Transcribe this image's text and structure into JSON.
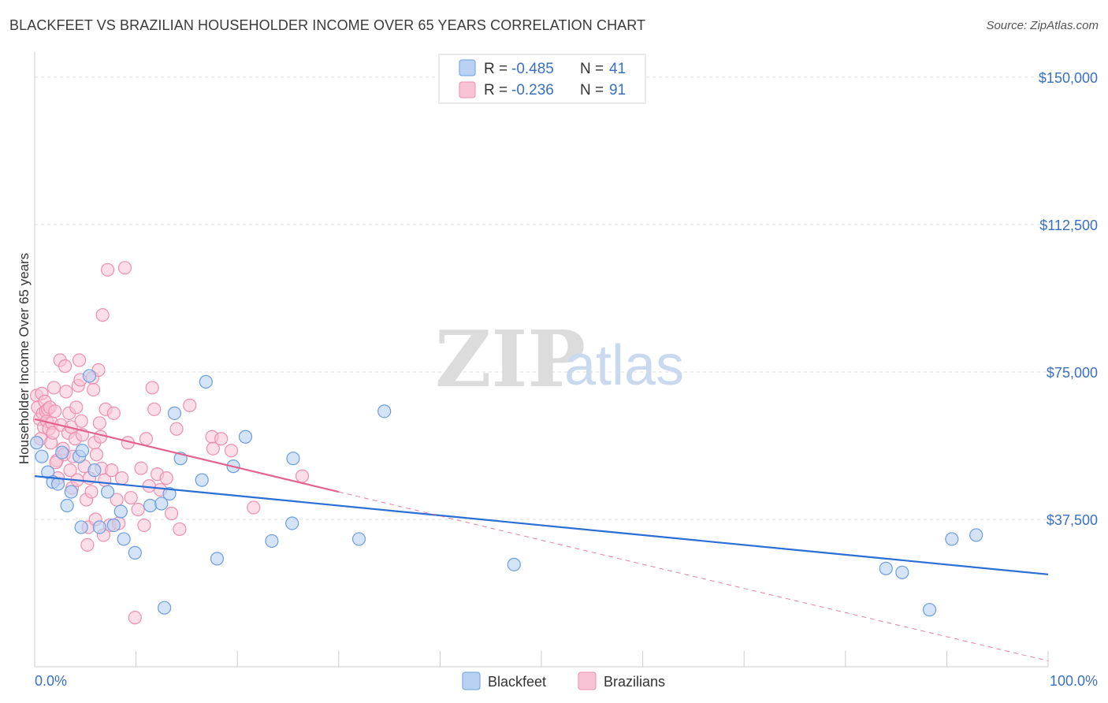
{
  "header": {
    "title": "BLACKFEET VS BRAZILIAN HOUSEHOLDER INCOME OVER 65 YEARS CORRELATION CHART",
    "source": "Source: ZipAtlas.com"
  },
  "watermark": {
    "zip": "ZIP",
    "atlas": "atlas"
  },
  "colors": {
    "blackfeet": "#6b9de0",
    "blackfeet_fill": "#b9d1f2",
    "blackfeet_line": "#2a6fd6",
    "brazilians": "#ef8fae",
    "brazilians_fill": "#f8c3d5",
    "brazilians_line": "#e4628f",
    "axis_label": "#3a70c4",
    "grid": "#dddddd"
  },
  "legend": {
    "rows": [
      {
        "r_label": "R = ",
        "r_value": "-0.485",
        "n_label": "N = ",
        "n_value": "41"
      },
      {
        "r_label": "R = ",
        "r_value": "-0.236",
        "n_label": "N = ",
        "n_value": "91"
      }
    ]
  },
  "bottom_legend": [
    "Blackfeet",
    "Brazilians"
  ],
  "chart_data": {
    "type": "scatter",
    "title": "BLACKFEET VS BRAZILIAN HOUSEHOLDER INCOME OVER 65 YEARS CORRELATION CHART",
    "xlabel": "",
    "ylabel": "Householder Income Over 65 years",
    "xlim": [
      0,
      100
    ],
    "ylim": [
      0,
      154000
    ],
    "x_tick_labels": [
      "0.0%",
      "100.0%"
    ],
    "y_ticks": [
      37500,
      75000,
      112500,
      150000
    ],
    "y_tick_labels": [
      "$37,500",
      "$75,000",
      "$112,500",
      "$150,000"
    ],
    "series": [
      {
        "name": "Blackfeet",
        "r": -0.485,
        "n": 41,
        "trend": {
          "x": [
            0,
            100
          ],
          "y": [
            48500,
            23500
          ]
        },
        "points": [
          [
            0.2,
            57000
          ],
          [
            0.7,
            53500
          ],
          [
            1.3,
            49500
          ],
          [
            1.8,
            47000
          ],
          [
            2.3,
            46500
          ],
          [
            2.7,
            54500
          ],
          [
            3.2,
            41000
          ],
          [
            3.6,
            44500
          ],
          [
            4.4,
            53500
          ],
          [
            4.6,
            35500
          ],
          [
            4.7,
            55000
          ],
          [
            5.4,
            74000
          ],
          [
            5.9,
            50000
          ],
          [
            6.4,
            35500
          ],
          [
            7.2,
            44500
          ],
          [
            7.8,
            36000
          ],
          [
            8.5,
            39500
          ],
          [
            8.8,
            32500
          ],
          [
            9.9,
            29000
          ],
          [
            11.4,
            41000
          ],
          [
            12.5,
            41500
          ],
          [
            12.8,
            15000
          ],
          [
            13.3,
            44000
          ],
          [
            13.8,
            64500
          ],
          [
            14.4,
            53000
          ],
          [
            16.5,
            47500
          ],
          [
            16.9,
            72500
          ],
          [
            18.0,
            27500
          ],
          [
            19.6,
            51000
          ],
          [
            20.8,
            58500
          ],
          [
            23.4,
            32000
          ],
          [
            25.5,
            53000
          ],
          [
            25.4,
            36500
          ],
          [
            32.0,
            32500
          ],
          [
            34.5,
            65000
          ],
          [
            47.3,
            26000
          ],
          [
            84.0,
            25000
          ],
          [
            85.6,
            24000
          ],
          [
            88.3,
            14500
          ],
          [
            90.5,
            32500
          ],
          [
            92.9,
            33500
          ]
        ]
      },
      {
        "name": "Brazilians",
        "r": -0.236,
        "n": 91,
        "trend": {
          "x": [
            0,
            30
          ],
          "y": [
            63000,
            44500
          ]
        },
        "trend_extension": {
          "x": [
            30,
            100
          ],
          "y": [
            44500,
            1500
          ]
        },
        "points": [
          [
            0.2,
            69000
          ],
          [
            0.3,
            66000
          ],
          [
            0.5,
            63000
          ],
          [
            0.6,
            58000
          ],
          [
            0.7,
            69500
          ],
          [
            0.8,
            64500
          ],
          [
            0.9,
            61000
          ],
          [
            1.0,
            67500
          ],
          [
            1.1,
            65000
          ],
          [
            1.2,
            62500
          ],
          [
            1.3,
            65500
          ],
          [
            1.4,
            60500
          ],
          [
            1.5,
            66000
          ],
          [
            1.6,
            57000
          ],
          [
            1.7,
            62000
          ],
          [
            1.8,
            59500
          ],
          [
            1.9,
            71000
          ],
          [
            2.0,
            65000
          ],
          [
            2.2,
            52500
          ],
          [
            2.3,
            48000
          ],
          [
            2.5,
            78000
          ],
          [
            2.6,
            61500
          ],
          [
            2.8,
            55500
          ],
          [
            2.9,
            54000
          ],
          [
            3.0,
            76500
          ],
          [
            3.1,
            70000
          ],
          [
            3.3,
            59500
          ],
          [
            3.4,
            64500
          ],
          [
            3.6,
            61000
          ],
          [
            3.7,
            45500
          ],
          [
            3.8,
            53500
          ],
          [
            4.0,
            58000
          ],
          [
            4.1,
            66000
          ],
          [
            4.2,
            47500
          ],
          [
            4.3,
            71500
          ],
          [
            4.4,
            78000
          ],
          [
            4.5,
            73000
          ],
          [
            4.6,
            62500
          ],
          [
            4.7,
            59000
          ],
          [
            4.9,
            51000
          ],
          [
            5.1,
            42500
          ],
          [
            5.2,
            31000
          ],
          [
            5.3,
            35500
          ],
          [
            5.4,
            48000
          ],
          [
            5.6,
            44500
          ],
          [
            5.7,
            73500
          ],
          [
            5.8,
            70500
          ],
          [
            5.9,
            57000
          ],
          [
            6.0,
            37500
          ],
          [
            6.1,
            54000
          ],
          [
            6.3,
            75500
          ],
          [
            6.4,
            62000
          ],
          [
            6.5,
            58500
          ],
          [
            6.6,
            50500
          ],
          [
            6.7,
            89500
          ],
          [
            6.9,
            47500
          ],
          [
            7.0,
            65500
          ],
          [
            7.2,
            101000
          ],
          [
            7.4,
            36000
          ],
          [
            7.6,
            50000
          ],
          [
            7.8,
            64500
          ],
          [
            8.1,
            42500
          ],
          [
            8.3,
            36500
          ],
          [
            8.6,
            48000
          ],
          [
            8.9,
            101500
          ],
          [
            9.2,
            57000
          ],
          [
            9.5,
            43000
          ],
          [
            9.9,
            12500
          ],
          [
            10.2,
            40000
          ],
          [
            10.5,
            50500
          ],
          [
            10.8,
            36000
          ],
          [
            11.0,
            58000
          ],
          [
            11.3,
            46000
          ],
          [
            11.6,
            71000
          ],
          [
            11.8,
            65500
          ],
          [
            12.1,
            49000
          ],
          [
            12.4,
            45000
          ],
          [
            13.0,
            48000
          ],
          [
            13.5,
            39000
          ],
          [
            14.0,
            60500
          ],
          [
            14.3,
            35000
          ],
          [
            15.3,
            66500
          ],
          [
            17.5,
            58500
          ],
          [
            17.6,
            55500
          ],
          [
            18.4,
            58000
          ],
          [
            19.4,
            55000
          ],
          [
            21.6,
            40500
          ],
          [
            26.4,
            48500
          ],
          [
            2.1,
            52000
          ],
          [
            3.5,
            50000
          ],
          [
            6.8,
            33500
          ]
        ]
      }
    ]
  }
}
